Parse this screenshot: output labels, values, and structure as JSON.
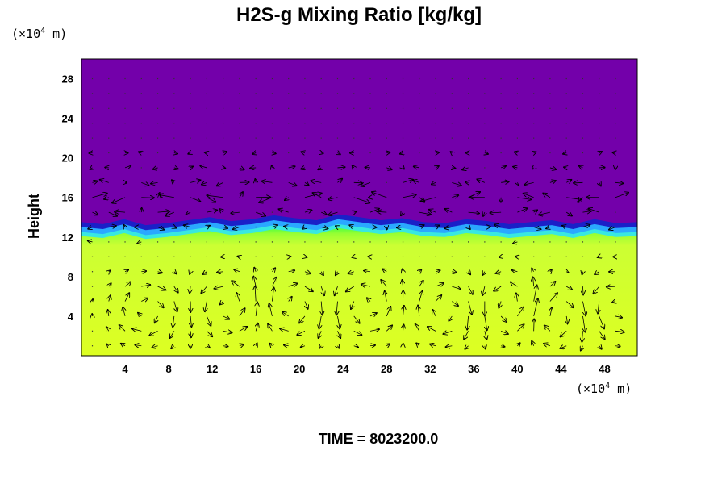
{
  "chart_data": {
    "type": "heatmap",
    "title": "H2S-g Mixing Ratio [kg/kg]",
    "ylabel": "Height",
    "x_unit_label": "(×10",
    "x_unit_exp": "4",
    "x_unit_tail": " m)",
    "y_unit_label": "(×10",
    "y_unit_exp": "4",
    "y_unit_tail": " m)",
    "xlim": [
      0,
      51
    ],
    "ylim": [
      0,
      30
    ],
    "x_ticks": [
      4,
      8,
      12,
      16,
      20,
      24,
      28,
      32,
      36,
      40,
      44,
      48
    ],
    "y_ticks": [
      4,
      8,
      12,
      16,
      20,
      24,
      28
    ],
    "time_label": "TIME = 8023200.0",
    "colors": {
      "upper_layer": "#7300aa",
      "interface_dark": "#1a20c8",
      "interface_mid": "#2aa8ff",
      "interface_light": "#38e8e0",
      "transition": "#40ff40",
      "lower_layer": "#ccff33",
      "lower_layer_alt": "#ddff22"
    },
    "interface_height": [
      12.6,
      12.4,
      12.9,
      12.3,
      12.5,
      12.8,
      13.1,
      12.7,
      12.9,
      13.3,
      13.0,
      12.8,
      13.4,
      13.1,
      12.8,
      13.0,
      12.6,
      12.5,
      12.9,
      12.7,
      12.4,
      12.6,
      12.8,
      12.4,
      12.9,
      12.5,
      12.6
    ],
    "circulation_cells": [
      {
        "x": 6,
        "y": 4.5,
        "direction": "cw"
      },
      {
        "x": 13.5,
        "y": 5,
        "direction": "ccw"
      },
      {
        "x": 19.5,
        "y": 5,
        "direction": "cw"
      },
      {
        "x": 26,
        "y": 5,
        "direction": "ccw"
      },
      {
        "x": 33.5,
        "y": 4.5,
        "direction": "cw"
      },
      {
        "x": 39.5,
        "y": 5,
        "direction": "ccw"
      },
      {
        "x": 43.5,
        "y": 4,
        "direction": "cw"
      },
      {
        "x": 49,
        "y": 5,
        "direction": "ccw"
      }
    ]
  }
}
